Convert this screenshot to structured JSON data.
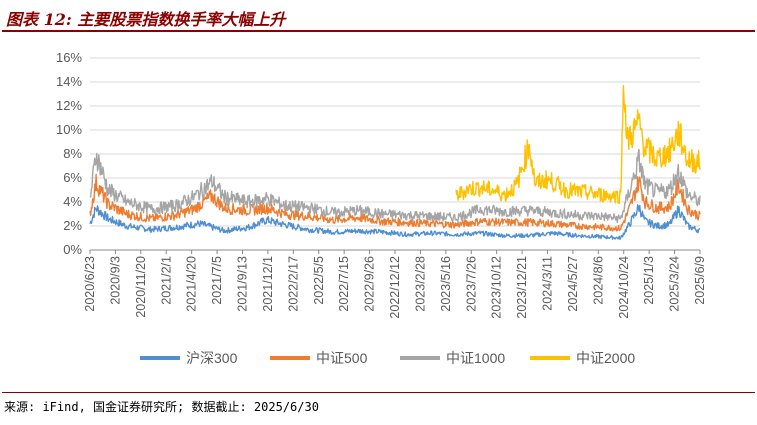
{
  "header": {
    "title": "图表 12: 主要股票指数换手率大幅上升"
  },
  "footer": {
    "source": "来源: iFind, 国金证券研究所; 数据截止: 2025/6/30"
  },
  "chart_data": {
    "type": "line",
    "title": "",
    "xlabel": "",
    "ylabel": "",
    "ylim": [
      0,
      16
    ],
    "yticks": [
      "0%",
      "2%",
      "4%",
      "6%",
      "8%",
      "10%",
      "12%",
      "14%",
      "16%"
    ],
    "xticks": [
      "2020/6/23",
      "2020/9/3",
      "2020/11/20",
      "2021/2/1",
      "2021/4/20",
      "2021/7/5",
      "2021/9/13",
      "2021/12/1",
      "2022/2/17",
      "2022/5/5",
      "2022/7/15",
      "2022/9/26",
      "2022/12/12",
      "2023/2/28",
      "2023/5/16",
      "2023/7/26",
      "2023/10/12",
      "2023/12/21",
      "2024/3/11",
      "2024/5/27",
      "2024/8/6",
      "2024/10/24",
      "2025/1/3",
      "2025/3/24",
      "2025/6/9"
    ],
    "legend_position": "bottom",
    "series": [
      {
        "name": "沪深300",
        "color": "#4f8fd1",
        "start": 0.0,
        "points": [
          [
            0,
            2.2
          ],
          [
            0.01,
            3.5
          ],
          [
            0.03,
            2.6
          ],
          [
            0.06,
            2.0
          ],
          [
            0.1,
            1.7
          ],
          [
            0.14,
            1.9
          ],
          [
            0.18,
            2.2
          ],
          [
            0.22,
            1.6
          ],
          [
            0.26,
            1.9
          ],
          [
            0.29,
            2.5
          ],
          [
            0.32,
            2.1
          ],
          [
            0.36,
            1.7
          ],
          [
            0.4,
            1.5
          ],
          [
            0.44,
            1.6
          ],
          [
            0.48,
            1.5
          ],
          [
            0.52,
            1.3
          ],
          [
            0.56,
            1.4
          ],
          [
            0.6,
            1.3
          ],
          [
            0.64,
            1.4
          ],
          [
            0.68,
            1.2
          ],
          [
            0.72,
            1.2
          ],
          [
            0.76,
            1.4
          ],
          [
            0.8,
            1.2
          ],
          [
            0.84,
            1.1
          ],
          [
            0.87,
            1.0
          ],
          [
            0.885,
            2.2
          ],
          [
            0.9,
            3.6
          ],
          [
            0.91,
            2.4
          ],
          [
            0.93,
            2.0
          ],
          [
            0.95,
            2.1
          ],
          [
            0.965,
            3.4
          ],
          [
            0.98,
            2.0
          ],
          [
            1.0,
            1.6
          ]
        ]
      },
      {
        "name": "中证500",
        "color": "#ed7d31",
        "start": 0.0,
        "points": [
          [
            0,
            3.0
          ],
          [
            0.01,
            5.6
          ],
          [
            0.03,
            3.8
          ],
          [
            0.06,
            3.0
          ],
          [
            0.1,
            2.6
          ],
          [
            0.14,
            2.9
          ],
          [
            0.17,
            3.4
          ],
          [
            0.2,
            4.5
          ],
          [
            0.22,
            3.5
          ],
          [
            0.26,
            3.3
          ],
          [
            0.29,
            3.5
          ],
          [
            0.32,
            3.0
          ],
          [
            0.36,
            2.8
          ],
          [
            0.4,
            2.5
          ],
          [
            0.44,
            2.7
          ],
          [
            0.48,
            2.4
          ],
          [
            0.52,
            2.3
          ],
          [
            0.56,
            2.2
          ],
          [
            0.6,
            2.1
          ],
          [
            0.64,
            2.4
          ],
          [
            0.68,
            2.3
          ],
          [
            0.72,
            2.3
          ],
          [
            0.76,
            2.2
          ],
          [
            0.8,
            2.0
          ],
          [
            0.84,
            1.9
          ],
          [
            0.87,
            1.8
          ],
          [
            0.885,
            3.5
          ],
          [
            0.9,
            5.8
          ],
          [
            0.91,
            4.0
          ],
          [
            0.93,
            3.5
          ],
          [
            0.95,
            3.6
          ],
          [
            0.965,
            5.4
          ],
          [
            0.98,
            3.4
          ],
          [
            1.0,
            2.8
          ]
        ]
      },
      {
        "name": "中证1000",
        "color": "#a5a5a5",
        "start": 0.0,
        "points": [
          [
            0,
            4.2
          ],
          [
            0.01,
            8.0
          ],
          [
            0.03,
            5.0
          ],
          [
            0.06,
            4.0
          ],
          [
            0.1,
            3.4
          ],
          [
            0.14,
            3.7
          ],
          [
            0.17,
            4.4
          ],
          [
            0.2,
            5.7
          ],
          [
            0.22,
            4.4
          ],
          [
            0.26,
            4.0
          ],
          [
            0.29,
            4.3
          ],
          [
            0.32,
            3.7
          ],
          [
            0.36,
            3.5
          ],
          [
            0.4,
            3.1
          ],
          [
            0.44,
            3.3
          ],
          [
            0.48,
            3.0
          ],
          [
            0.52,
            2.9
          ],
          [
            0.56,
            2.8
          ],
          [
            0.6,
            2.7
          ],
          [
            0.64,
            3.4
          ],
          [
            0.68,
            3.2
          ],
          [
            0.72,
            3.3
          ],
          [
            0.76,
            3.1
          ],
          [
            0.8,
            2.9
          ],
          [
            0.84,
            2.8
          ],
          [
            0.87,
            2.6
          ],
          [
            0.885,
            5.0
          ],
          [
            0.9,
            7.5
          ],
          [
            0.91,
            5.4
          ],
          [
            0.93,
            4.8
          ],
          [
            0.95,
            5.0
          ],
          [
            0.965,
            6.6
          ],
          [
            0.98,
            4.6
          ],
          [
            1.0,
            4.0
          ]
        ]
      },
      {
        "name": "中证2000",
        "color": "#ffc000",
        "start": 0.6,
        "points": [
          [
            0.6,
            4.5
          ],
          [
            0.62,
            5.1
          ],
          [
            0.64,
            5.2
          ],
          [
            0.66,
            5.0
          ],
          [
            0.68,
            4.6
          ],
          [
            0.7,
            5.4
          ],
          [
            0.72,
            8.8
          ],
          [
            0.73,
            5.5
          ],
          [
            0.75,
            5.9
          ],
          [
            0.78,
            5.0
          ],
          [
            0.81,
            4.8
          ],
          [
            0.84,
            4.6
          ],
          [
            0.87,
            4.5
          ],
          [
            0.875,
            14.7
          ],
          [
            0.88,
            9.0
          ],
          [
            0.9,
            10.6
          ],
          [
            0.91,
            8.5
          ],
          [
            0.93,
            7.6
          ],
          [
            0.95,
            8.2
          ],
          [
            0.965,
            9.8
          ],
          [
            0.98,
            7.5
          ],
          [
            1.0,
            7.3
          ]
        ]
      }
    ]
  }
}
